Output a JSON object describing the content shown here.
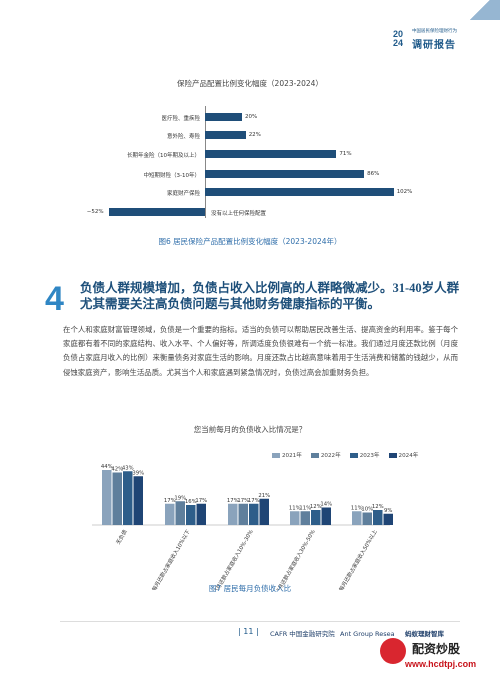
{
  "header": {
    "year_top": "20",
    "year_bottom": "24",
    "subtitle": "中国居民保险理财行为",
    "title": "调研报告"
  },
  "chart1": {
    "title": "保险产品配置比例变化幅度（2023-2024）",
    "caption": "图6 居民保险产品配置比例变化幅度（2023-2024年）"
  },
  "section": {
    "number": "4",
    "title": "负债人群规模增加，负债占收入比例高的人群略微减少。31-40岁人群尤其需要关注高负债问题与其他财务健康指标的平衡。",
    "paragraph": "在个人和家庭财富管理领域，负债是一个重要的指标。适当的负债可以帮助居民改善生活、提高资金的利用率。鉴于每个家庭都有着不同的家庭结构、收入水平、个人偏好等，所调适度负债很难有一个统一标准。我们通过月度还款比例（月度负债占家庭月收入的比例）来衡量债务对家庭生活的影响。月度还款占比越高意味着用于生活消费和储蓄的钱越少，从而侵蚀家庭资产，影响生活品质。尤其当个人和家庭遇到紧急情况时，负债过高会加重财务负担。"
  },
  "chart2": {
    "title": "您当前每月的负债收入比情况是？",
    "caption": "图7 居民每月负债收入比"
  },
  "footer": {
    "page": "| 11 |",
    "logo1": "CAFR 中国金融研究院",
    "logo2": "Ant Group Research 蚂蚁集团研究院",
    "logo3": "蚂蚁理财智库"
  },
  "watermark": {
    "name": "配资炒股",
    "url": "www.hcdtpj.com"
  },
  "colors": {
    "bar_dark": "#1f4e79",
    "bar_2021": "#8aa3bc",
    "bar_2022": "#5f7f9c",
    "bar_2023": "#2e5e8a",
    "bar_2024": "#1f4575"
  },
  "chart_data": [
    {
      "type": "bar",
      "orientation": "horizontal",
      "title": "保险产品配置比例变化幅度（2023-2024）",
      "categories": [
        "医疗险、重疾险",
        "意外险、寿险",
        "长期年金险（10年期及以上）",
        "中短期财险（3-10年）",
        "家庭财产保险",
        "没有以上任何保险配置"
      ],
      "values": [
        20,
        22,
        71,
        86,
        102,
        -52
      ],
      "value_labels": [
        "20%",
        "22%",
        "71%",
        "86%",
        "102%",
        "−52%"
      ],
      "xlim": [
        -60,
        110
      ]
    },
    {
      "type": "bar",
      "title": "您当前每月的负债收入比情况是？",
      "categories": [
        "无负债",
        "每月还款占家庭收入10%以下",
        "每月还款占家庭收入10%-30%",
        "每月还款占家庭收入30%-50%",
        "每月还款占家庭收入50%以上"
      ],
      "series": [
        {
          "name": "2021年",
          "values": [
            44,
            17,
            17,
            11,
            11
          ]
        },
        {
          "name": "2022年",
          "values": [
            42,
            19,
            17,
            11,
            10
          ]
        },
        {
          "name": "2023年",
          "values": [
            43,
            16,
            17,
            12,
            12
          ]
        },
        {
          "name": "2024年",
          "values": [
            39,
            17,
            21,
            14,
            9
          ]
        }
      ],
      "ylim": [
        0,
        50
      ]
    }
  ]
}
